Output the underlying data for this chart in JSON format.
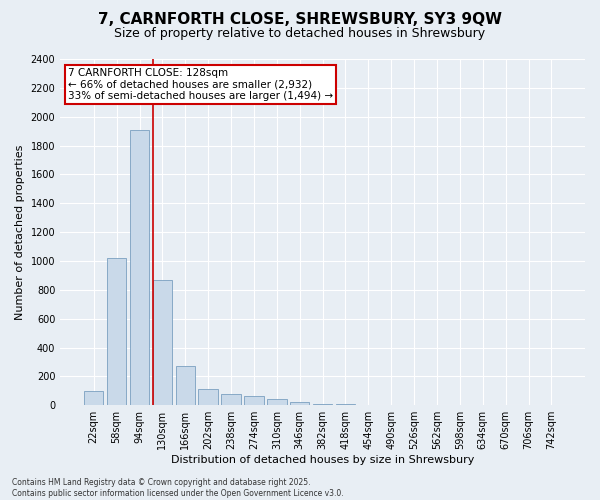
{
  "title_line1": "7, CARNFORTH CLOSE, SHREWSBURY, SY3 9QW",
  "title_line2": "Size of property relative to detached houses in Shrewsbury",
  "xlabel": "Distribution of detached houses by size in Shrewsbury",
  "ylabel": "Number of detached properties",
  "bar_color": "#c9d9e9",
  "bar_edge_color": "#7aA0c0",
  "vline_color": "#cc0000",
  "annotation_box_color": "#cc0000",
  "annotation_text_line1": "7 CARNFORTH CLOSE: 128sqm",
  "annotation_text_line2": "← 66% of detached houses are smaller (2,932)",
  "annotation_text_line3": "33% of semi-detached houses are larger (1,494) →",
  "categories": [
    "22sqm",
    "58sqm",
    "94sqm",
    "130sqm",
    "166sqm",
    "202sqm",
    "238sqm",
    "274sqm",
    "310sqm",
    "346sqm",
    "382sqm",
    "418sqm",
    "454sqm",
    "490sqm",
    "526sqm",
    "562sqm",
    "598sqm",
    "634sqm",
    "670sqm",
    "706sqm",
    "742sqm"
  ],
  "values": [
    100,
    1020,
    1910,
    870,
    270,
    110,
    80,
    65,
    45,
    20,
    10,
    5,
    3,
    2,
    1,
    1,
    0,
    0,
    0,
    0,
    0
  ],
  "ylim": [
    0,
    2400
  ],
  "yticks": [
    0,
    200,
    400,
    600,
    800,
    1000,
    1200,
    1400,
    1600,
    1800,
    2000,
    2200,
    2400
  ],
  "background_color": "#e8eef4",
  "plot_bg_color": "#e8eef4",
  "footer_line1": "Contains HM Land Registry data © Crown copyright and database right 2025.",
  "footer_line2": "Contains public sector information licensed under the Open Government Licence v3.0.",
  "title_fontsize": 11,
  "subtitle_fontsize": 9,
  "tick_fontsize": 7,
  "label_fontsize": 8,
  "annotation_fontsize": 7.5
}
